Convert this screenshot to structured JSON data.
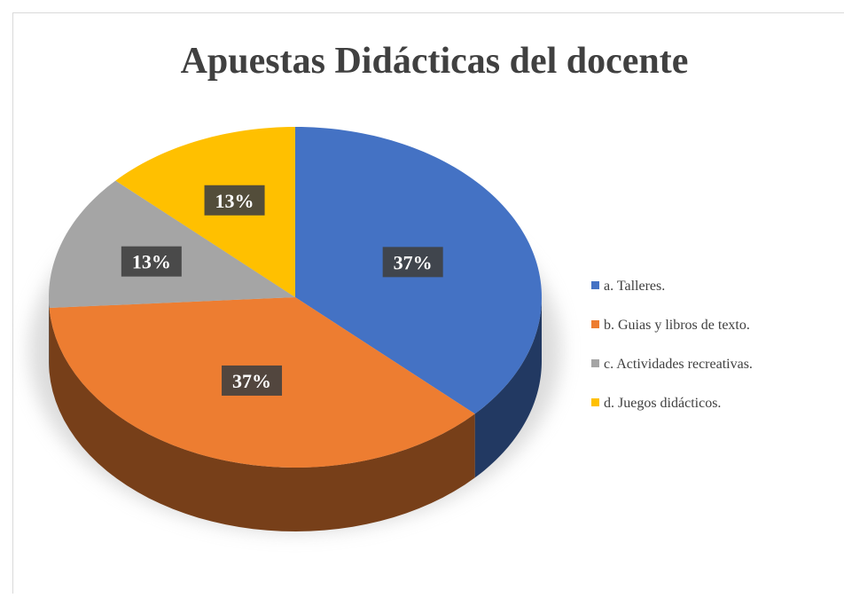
{
  "chart_data": {
    "type": "pie",
    "title": "Apuestas Didácticas del docente",
    "categories": [
      "a. Talleres.",
      "b. Guias y libros de texto.",
      "c. Actividades recreativas.",
      "d. Juegos didácticos."
    ],
    "values": [
      37,
      37,
      13,
      13
    ],
    "value_labels": [
      "37%",
      "37%",
      "13%",
      "13%"
    ],
    "colors": [
      "#4472c4",
      "#ed7d31",
      "#a5a5a5",
      "#ffc000"
    ],
    "legend": "right"
  }
}
